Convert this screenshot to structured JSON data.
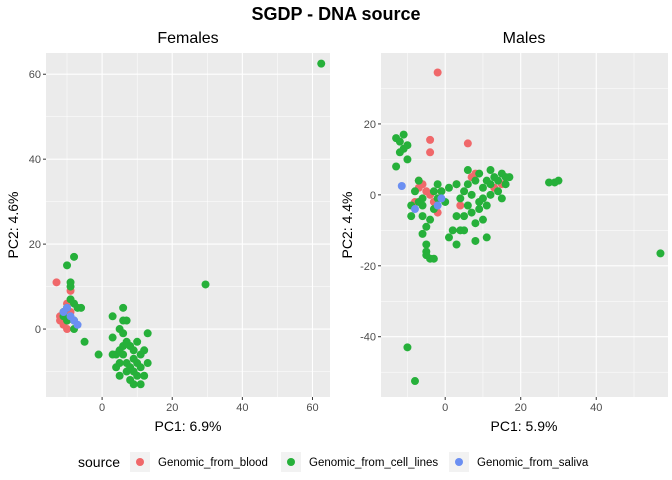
{
  "title": "SGDP - DNA source",
  "colors": {
    "Genomic_from_blood": "#f0686a",
    "Genomic_from_cell_lines": "#26b03a",
    "Genomic_from_saliva": "#6b8ff2",
    "panel_bg": "#ebebeb",
    "grid": "#ffffff"
  },
  "legend": {
    "title": "source",
    "position": "bottom",
    "entries": [
      "Genomic_from_blood",
      "Genomic_from_cell_lines",
      "Genomic_from_saliva"
    ]
  },
  "chart_data": [
    {
      "type": "scatter",
      "title": "Females",
      "xlabel": "PC1: 6.9%",
      "ylabel": "PC2: 4.6%",
      "xlim": [
        -16,
        65
      ],
      "ylim": [
        -16,
        65
      ],
      "xticks": [
        0,
        20,
        40,
        60
      ],
      "yticks": [
        0,
        20,
        40,
        60
      ],
      "grid": true,
      "series": [
        {
          "name": "Genomic_from_blood",
          "points": [
            [
              -13,
              11
            ],
            [
              -12,
              3
            ],
            [
              -11,
              4
            ],
            [
              -10,
              6
            ],
            [
              -10,
              2
            ],
            [
              -9,
              9
            ],
            [
              -11,
              1
            ],
            [
              -10,
              0
            ],
            [
              -9,
              4
            ],
            [
              -12,
              2
            ]
          ]
        },
        {
          "name": "Genomic_from_cell_lines",
          "points": [
            [
              62.5,
              62.5
            ],
            [
              29.5,
              10.5
            ],
            [
              -8,
              17
            ],
            [
              -10,
              15
            ],
            [
              -9,
              11
            ],
            [
              -9,
              10
            ],
            [
              -8,
              6
            ],
            [
              -7,
              5
            ],
            [
              -9,
              7
            ],
            [
              -6,
              5
            ],
            [
              -10,
              5
            ],
            [
              -11,
              4
            ],
            [
              -10,
              2
            ],
            [
              -8,
              2
            ],
            [
              -11,
              3
            ],
            [
              -8,
              0
            ],
            [
              -5,
              -3
            ],
            [
              -1,
              -6
            ],
            [
              3,
              -6
            ],
            [
              3,
              -2
            ],
            [
              3,
              3
            ],
            [
              4,
              -6
            ],
            [
              4,
              -9
            ],
            [
              5,
              -5
            ],
            [
              5,
              -8
            ],
            [
              5,
              -11
            ],
            [
              6,
              -4
            ],
            [
              6,
              5
            ],
            [
              6,
              -1
            ],
            [
              6,
              -6
            ],
            [
              7,
              -8
            ],
            [
              7,
              2
            ],
            [
              7,
              -10
            ],
            [
              7,
              -3
            ],
            [
              8,
              -9
            ],
            [
              8,
              -4
            ],
            [
              8,
              -12
            ],
            [
              9,
              -7
            ],
            [
              9,
              -5
            ],
            [
              9,
              -10
            ],
            [
              10,
              -8
            ],
            [
              10,
              -11
            ],
            [
              10,
              -3
            ],
            [
              11,
              -6
            ],
            [
              11,
              -9
            ],
            [
              12,
              -5
            ],
            [
              12,
              -11
            ],
            [
              13,
              -8
            ],
            [
              13,
              -1
            ],
            [
              11,
              -13
            ],
            [
              9,
              -13
            ],
            [
              5,
              0
            ],
            [
              6,
              2
            ]
          ]
        },
        {
          "name": "Genomic_from_saliva",
          "points": [
            [
              -11,
              4
            ],
            [
              -8,
              2
            ],
            [
              -7,
              1
            ],
            [
              -9,
              3
            ],
            [
              -10,
              5
            ]
          ]
        }
      ]
    },
    {
      "type": "scatter",
      "title": "Males",
      "xlabel": "PC1: 5.9%",
      "ylabel": "PC2: 4.4%",
      "xlim": [
        -17,
        59
      ],
      "ylim": [
        -57,
        40
      ],
      "xticks": [
        0,
        20,
        40
      ],
      "yticks": [
        -40,
        -20,
        0,
        20
      ],
      "grid": true,
      "series": [
        {
          "name": "Genomic_from_blood",
          "points": [
            [
              -2,
              34.5
            ],
            [
              -4,
              15.5
            ],
            [
              -4,
              12
            ],
            [
              6,
              14.5
            ],
            [
              -7,
              4
            ],
            [
              -7,
              2
            ],
            [
              -8,
              -2
            ],
            [
              -6,
              3
            ],
            [
              -5,
              1
            ],
            [
              -4,
              0
            ],
            [
              -3,
              -2
            ],
            [
              -2,
              -5
            ],
            [
              -1,
              1
            ],
            [
              3,
              3
            ],
            [
              4,
              -3
            ],
            [
              7,
              5
            ],
            [
              8,
              6
            ],
            [
              15,
              3
            ],
            [
              13,
              2
            ]
          ]
        },
        {
          "name": "Genomic_from_cell_lines",
          "points": [
            [
              -13,
              16
            ],
            [
              -12,
              15
            ],
            [
              -12,
              12
            ],
            [
              -11,
              17
            ],
            [
              -11,
              13
            ],
            [
              -10,
              10
            ],
            [
              -10,
              14
            ],
            [
              -13,
              8
            ],
            [
              -9,
              -3
            ],
            [
              -8,
              1
            ],
            [
              -7,
              -2
            ],
            [
              -7,
              4
            ],
            [
              -6,
              -6
            ],
            [
              -6,
              -11
            ],
            [
              -5,
              -14
            ],
            [
              -5,
              -16
            ],
            [
              -4,
              -18
            ],
            [
              -5,
              -9
            ],
            [
              -4,
              -7
            ],
            [
              -6,
              -3
            ],
            [
              -3,
              -4
            ],
            [
              -3,
              1
            ],
            [
              -2,
              3
            ],
            [
              -2,
              -1
            ],
            [
              -1,
              1
            ],
            [
              0,
              -2
            ],
            [
              1,
              -12
            ],
            [
              2,
              -10
            ],
            [
              3,
              3
            ],
            [
              3,
              -6
            ],
            [
              3,
              -14
            ],
            [
              4,
              -10
            ],
            [
              4,
              -1
            ],
            [
              5,
              -6
            ],
            [
              5,
              -10
            ],
            [
              5,
              1
            ],
            [
              6,
              3
            ],
            [
              6,
              -3
            ],
            [
              6,
              7
            ],
            [
              7,
              0
            ],
            [
              7,
              -5
            ],
            [
              8,
              4
            ],
            [
              8,
              -8
            ],
            [
              8,
              -13
            ],
            [
              9,
              -4
            ],
            [
              9,
              6
            ],
            [
              10,
              2
            ],
            [
              10,
              -1
            ],
            [
              11,
              4
            ],
            [
              11,
              -3
            ],
            [
              11,
              -12
            ],
            [
              12,
              7
            ],
            [
              12,
              3
            ],
            [
              12,
              0
            ],
            [
              13,
              5
            ],
            [
              14,
              1
            ],
            [
              14,
              4
            ],
            [
              15,
              -1
            ],
            [
              16,
              5
            ],
            [
              16,
              3
            ],
            [
              17,
              5
            ],
            [
              15,
              6
            ],
            [
              27.5,
              3.5
            ],
            [
              29,
              3.5
            ],
            [
              30,
              4
            ],
            [
              57,
              -16.5
            ],
            [
              -10,
              -43
            ],
            [
              -8,
              -52.5
            ],
            [
              -5,
              -17
            ],
            [
              -3,
              -18
            ],
            [
              -9,
              -6
            ],
            [
              -6,
              -1
            ],
            [
              1,
              2
            ],
            [
              9,
              -2
            ],
            [
              10,
              -7
            ]
          ]
        },
        {
          "name": "Genomic_from_saliva",
          "points": [
            [
              -11.5,
              2.5
            ],
            [
              -8,
              -4
            ],
            [
              -1,
              -1
            ],
            [
              -2,
              -3
            ]
          ]
        }
      ]
    }
  ]
}
